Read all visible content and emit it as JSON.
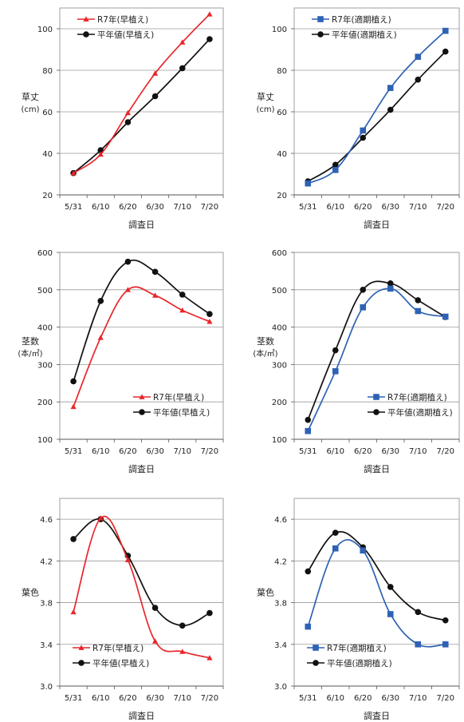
{
  "chart_data": [
    {
      "id": "height-early",
      "type": "line",
      "title": "",
      "ylabel": "草丈",
      "yunit": "(cm)",
      "xlabel": "調査日",
      "categories": [
        "5/31",
        "6/10",
        "6/20",
        "6/30",
        "7/10",
        "7/20"
      ],
      "ylim": [
        20,
        110
      ],
      "yticks": [
        20,
        40,
        60,
        80,
        100
      ],
      "grid": true,
      "legend": "top-left",
      "series": [
        {
          "name": "R7年(早植え)",
          "color": "#e8262b",
          "marker": "triangle",
          "values": [
            30.5,
            39.5,
            59.5,
            78.5,
            93.5,
            107
          ]
        },
        {
          "name": "平年値(早植え)",
          "color": "#111111",
          "marker": "circle",
          "values": [
            30.5,
            41.5,
            55,
            67.5,
            81,
            95
          ]
        }
      ]
    },
    {
      "id": "height-normal",
      "type": "line",
      "title": "",
      "ylabel": "草丈",
      "yunit": "(cm)",
      "xlabel": "調査日",
      "categories": [
        "5/31",
        "6/10",
        "6/20",
        "6/30",
        "7/10",
        "7/20"
      ],
      "ylim": [
        20,
        110
      ],
      "yticks": [
        20,
        40,
        60,
        80,
        100
      ],
      "grid": true,
      "legend": "top-left",
      "series": [
        {
          "name": "R7年(適期植え)",
          "color": "#2e62b5",
          "marker": "square",
          "values": [
            25.5,
            32,
            51,
            71.5,
            86.5,
            99
          ]
        },
        {
          "name": "平年値(適期植え)",
          "color": "#111111",
          "marker": "circle",
          "values": [
            26.5,
            34.5,
            47.5,
            61,
            75.5,
            89
          ]
        }
      ]
    },
    {
      "id": "stems-early",
      "type": "line",
      "title": "",
      "ylabel": "茎数",
      "yunit": "(本/㎡)",
      "xlabel": "調査日",
      "categories": [
        "5/31",
        "6/10",
        "6/20",
        "6/30",
        "7/10",
        "7/20"
      ],
      "ylim": [
        100,
        600
      ],
      "yticks": [
        100,
        200,
        300,
        400,
        500,
        600
      ],
      "grid": true,
      "legend": "bottom-right",
      "series": [
        {
          "name": "R7年(早植え)",
          "color": "#e8262b",
          "marker": "triangle",
          "values": [
            187,
            372,
            500,
            485,
            445,
            415
          ]
        },
        {
          "name": "平年値(早植え)",
          "color": "#111111",
          "marker": "circle",
          "values": [
            255,
            470,
            575,
            548,
            487,
            435
          ]
        }
      ]
    },
    {
      "id": "stems-normal",
      "type": "line",
      "title": "",
      "ylabel": "茎数",
      "yunit": "(本/㎡)",
      "xlabel": "調査日",
      "categories": [
        "5/31",
        "6/10",
        "6/20",
        "6/30",
        "7/10",
        "7/20"
      ],
      "ylim": [
        100,
        600
      ],
      "yticks": [
        100,
        200,
        300,
        400,
        500,
        600
      ],
      "grid": true,
      "legend": "bottom-right",
      "series": [
        {
          "name": "R7年(適期植え)",
          "color": "#2e62b5",
          "marker": "square",
          "values": [
            122,
            282,
            453,
            503,
            443,
            428
          ]
        },
        {
          "name": "平年値(適期植え)",
          "color": "#111111",
          "marker": "circle",
          "values": [
            152,
            338,
            500,
            517,
            472,
            427
          ]
        }
      ]
    },
    {
      "id": "color-early",
      "type": "line",
      "title": "",
      "ylabel": "葉色",
      "yunit": "",
      "xlabel": "調査日",
      "categories": [
        "5/31",
        "6/10",
        "6/20",
        "6/30",
        "7/10",
        "7/20"
      ],
      "ylim": [
        3.0,
        4.8
      ],
      "yticks": [
        3.0,
        3.4,
        3.8,
        4.2,
        4.6
      ],
      "grid": true,
      "legend": "bottom-left",
      "series": [
        {
          "name": "R7年(早植え)",
          "color": "#e8262b",
          "marker": "triangle",
          "values": [
            3.71,
            4.61,
            4.21,
            3.43,
            3.33,
            3.27
          ]
        },
        {
          "name": "平年値(早植え)",
          "color": "#111111",
          "marker": "circle",
          "values": [
            4.41,
            4.6,
            4.25,
            3.75,
            3.58,
            3.7
          ]
        }
      ]
    },
    {
      "id": "color-normal",
      "type": "line",
      "title": "",
      "ylabel": "葉色",
      "yunit": "",
      "xlabel": "調査日",
      "categories": [
        "5/31",
        "6/10",
        "6/20",
        "6/30",
        "7/10",
        "7/20"
      ],
      "ylim": [
        3.0,
        4.8
      ],
      "yticks": [
        3.0,
        3.4,
        3.8,
        4.2,
        4.6
      ],
      "grid": true,
      "legend": "bottom-left",
      "series": [
        {
          "name": "R7年(適期植え)",
          "color": "#2e62b5",
          "marker": "square",
          "values": [
            3.57,
            4.32,
            4.3,
            3.69,
            3.4,
            3.4
          ]
        },
        {
          "name": "平年値(適期植え)",
          "color": "#111111",
          "marker": "circle",
          "values": [
            4.1,
            4.47,
            4.33,
            3.95,
            3.71,
            3.63
          ]
        }
      ]
    }
  ]
}
